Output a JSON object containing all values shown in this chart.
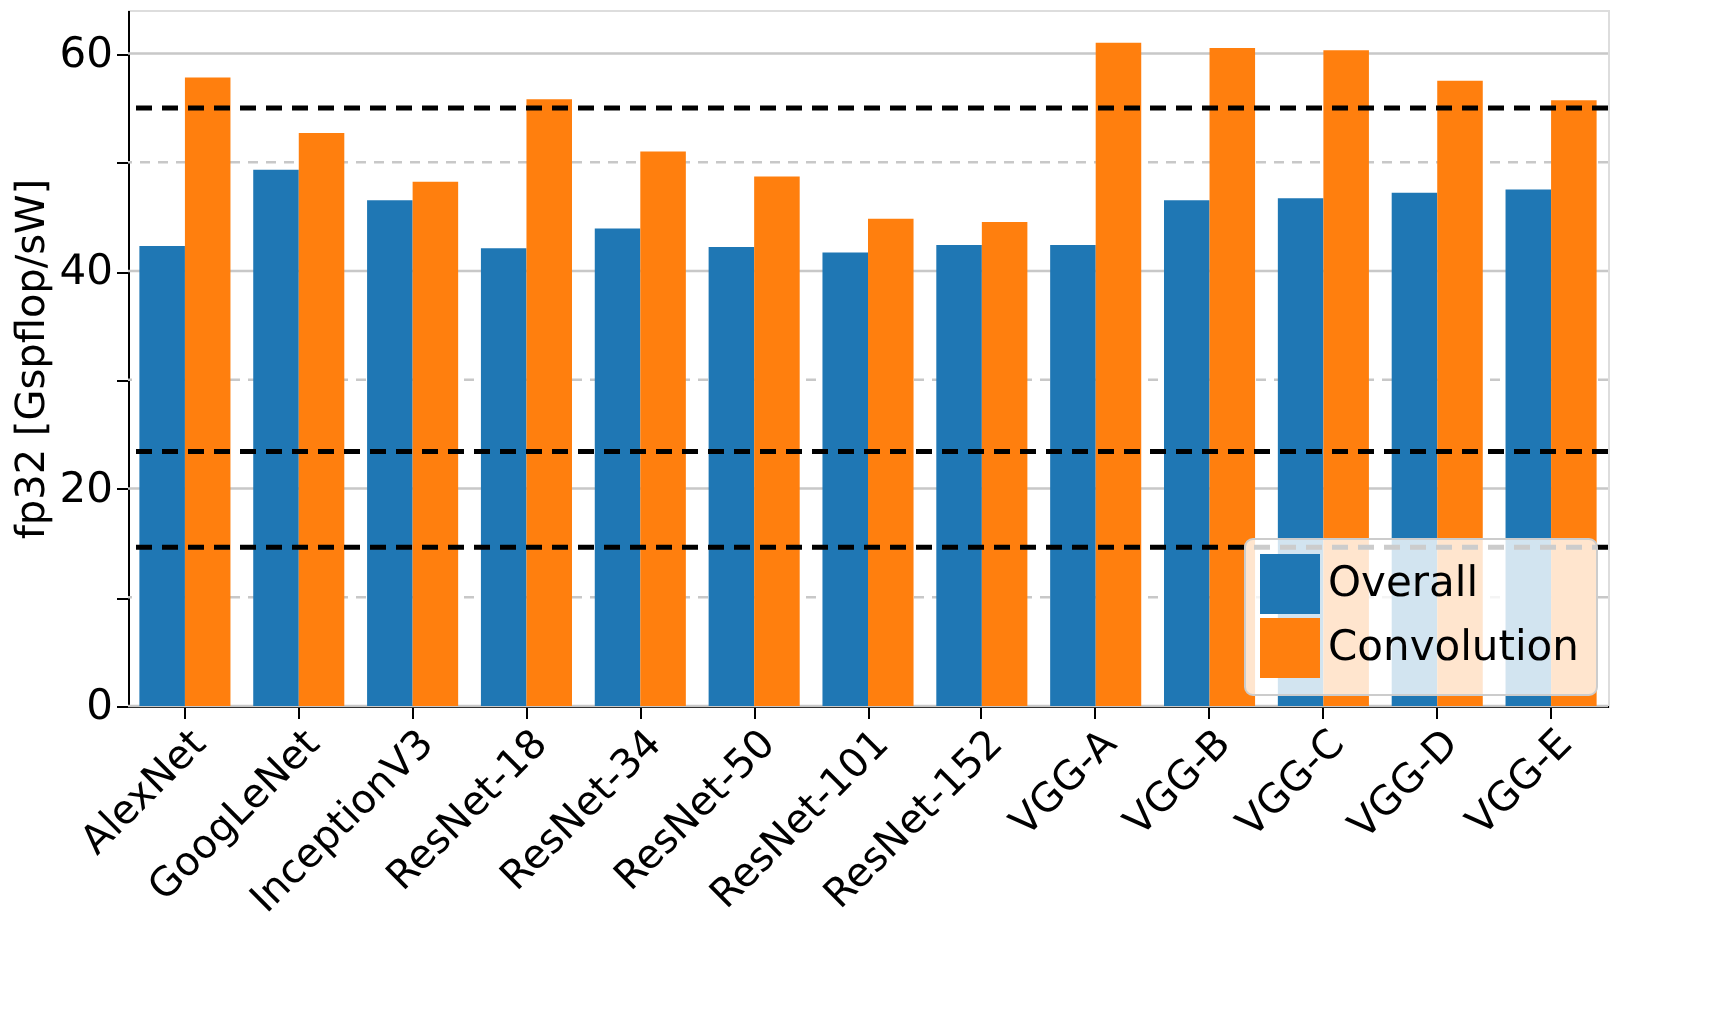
{
  "chart_data": {
    "type": "bar",
    "ylabel": "fp32 [Gspflop/sW]",
    "categories": [
      "AlexNet",
      "GoogLeNet",
      "InceptionV3",
      "ResNet-18",
      "ResNet-34",
      "ResNet-50",
      "ResNet-101",
      "ResNet-152",
      "VGG-A",
      "VGG-B",
      "VGG-C",
      "VGG-D",
      "VGG-E"
    ],
    "series": [
      {
        "name": "Overall",
        "color": "#1f77b4",
        "values": [
          42.3,
          49.3,
          46.5,
          42.1,
          43.9,
          42.2,
          41.7,
          42.4,
          42.4,
          46.5,
          46.7,
          47.2,
          47.5
        ]
      },
      {
        "name": "Convolution",
        "color": "#ff7f0e",
        "values": [
          57.8,
          52.7,
          48.2,
          55.8,
          51.0,
          48.7,
          44.8,
          44.5,
          61.0,
          60.5,
          60.3,
          57.5,
          55.7
        ]
      }
    ],
    "ylim": [
      0,
      64
    ],
    "yticks": [
      0,
      {
        "value": 10,
        "label": null
      },
      20,
      {
        "value": 30,
        "label": null
      },
      40,
      {
        "value": 50,
        "label": null
      },
      60
    ],
    "grid": "y",
    "legend": "bottom right",
    "ref_lines": [
      {
        "axis": "y",
        "value": 55.0,
        "color": "#000000",
        "line_style": "dashed"
      },
      {
        "axis": "y",
        "value": 23.4,
        "color": "#000000",
        "line_style": "dashed"
      },
      {
        "axis": "y",
        "value": 14.6,
        "color": "#000000",
        "line_style": "dashed"
      }
    ]
  }
}
